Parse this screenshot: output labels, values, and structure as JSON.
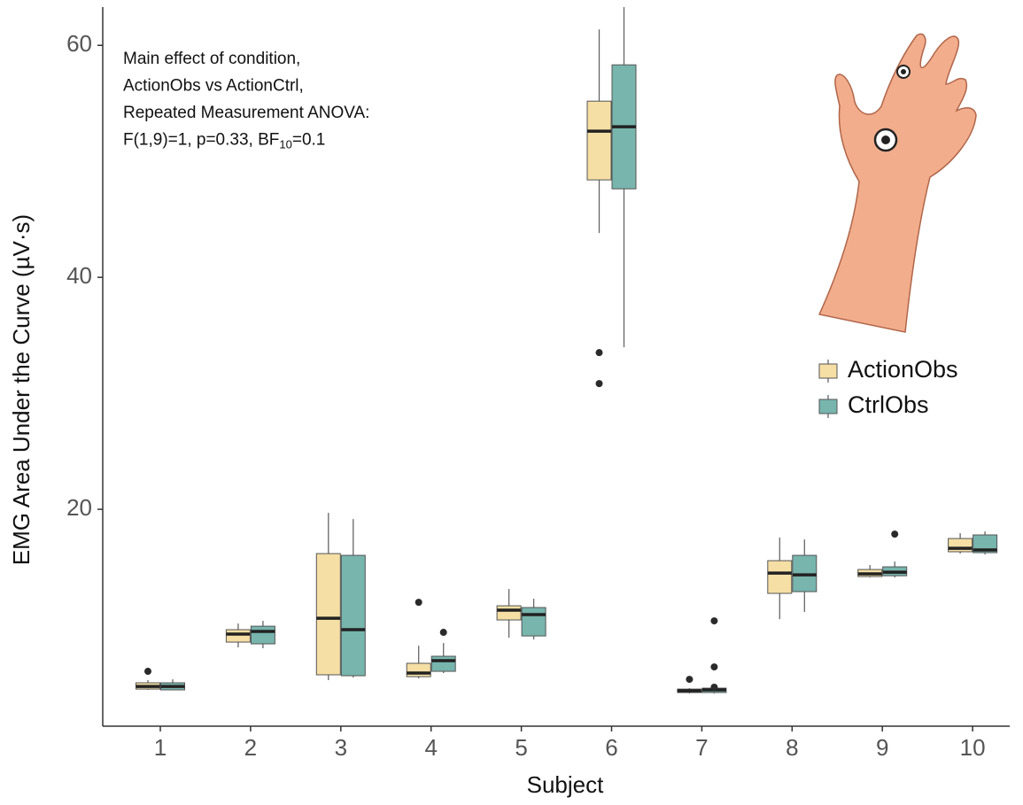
{
  "chart_data": {
    "type": "boxplot",
    "x_label": "Subject",
    "y_label": "EMG Area Under the Curve (µV·s)",
    "annotation_lines": [
      "Main effect of condition,",
      "ActionObs vs ActionCtrl,",
      "Repeated Measurement ANOVA:"
    ],
    "annotation_stat": [
      "F(1,9)=1, p=0.33, BF",
      "10",
      "=0.1"
    ],
    "categories": [
      "1",
      "2",
      "3",
      "4",
      "5",
      "6",
      "7",
      "8",
      "9",
      "10"
    ],
    "ylim": [
      1.3,
      63.3
    ],
    "yticks": [
      20,
      40,
      60
    ],
    "series": [
      {
        "name": "ActionObs",
        "color": "#f5dfa5",
        "low": [
          4.43,
          8.09,
          5.27,
          5.42,
          8.93,
          43.82,
          4.12,
          10.53,
          14.12,
          16.18
        ],
        "q1": [
          4.5,
          8.55,
          5.73,
          5.57,
          10.46,
          48.4,
          4.2,
          12.75,
          14.2,
          16.34
        ],
        "median": [
          4.73,
          9.24,
          10.61,
          5.88,
          11.3,
          52.6,
          4.35,
          14.5,
          14.43,
          16.64
        ],
        "q3": [
          5.04,
          9.62,
          16.18,
          6.72,
          11.68,
          55.19,
          4.5,
          15.57,
          14.81,
          17.48
        ],
        "high": [
          5.27,
          10.15,
          19.69,
          8.24,
          13.13,
          61.37,
          4.58,
          17.56,
          15.19,
          17.94
        ],
        "outliers": [
          [
            6.03
          ],
          [],
          [],
          [
            11.98
          ],
          [],
          [
            33.51,
            30.84
          ],
          [
            5.34
          ],
          [],
          [],
          []
        ]
      },
      {
        "name": "CtrlObs",
        "color": "#77b5ad",
        "low": [
          4.4,
          8.02,
          5.5,
          5.88,
          8.78,
          33.97,
          4.12,
          11.15,
          14.12,
          16.11
        ],
        "q1": [
          4.43,
          8.4,
          5.65,
          6.03,
          9.08,
          47.63,
          4.2,
          12.9,
          14.27,
          16.26
        ],
        "median": [
          4.73,
          9.47,
          9.62,
          6.95,
          10.92,
          52.98,
          4.43,
          14.35,
          14.58,
          16.49
        ],
        "q3": [
          5.04,
          9.92,
          16.03,
          7.33,
          11.53,
          58.32,
          4.58,
          16.03,
          15.04,
          17.79
        ],
        "high": [
          5.34,
          10.38,
          19.16,
          8.47,
          12.29,
          63.3,
          4.66,
          17.4,
          15.5,
          18.09
        ],
        "outliers": [
          [],
          [],
          [],
          [
            9.39
          ],
          [],
          [],
          [
            4.66,
            6.41,
            10.38
          ],
          [],
          [
            17.86
          ],
          []
        ]
      }
    ]
  }
}
